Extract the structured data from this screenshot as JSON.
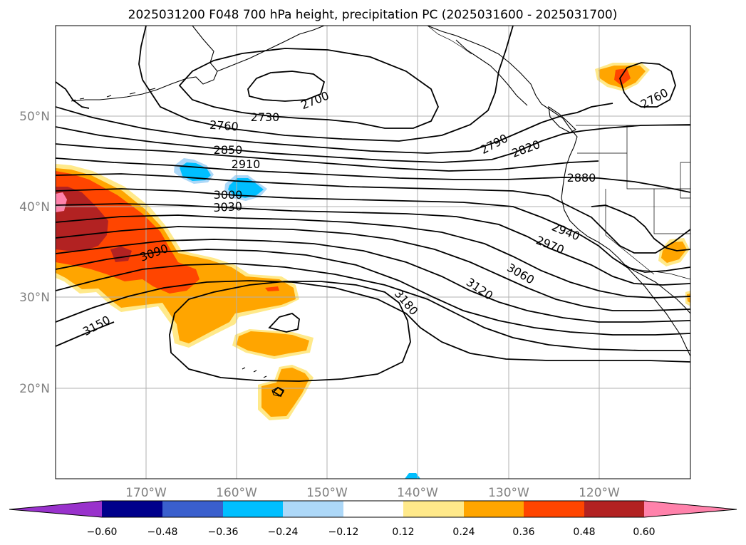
{
  "title": "2025031200 F048 700 hPa height, precipitation PC (2025031600 - 2025031700)",
  "latitude_labels": [
    "50°N",
    "40°N",
    "30°N",
    "20°N"
  ],
  "longitude_labels": [
    "170°W",
    "160°W",
    "150°W",
    "140°W",
    "130°W",
    "120°W"
  ],
  "contour_labels": [
    "2700",
    "2730",
    "2760",
    "2760",
    "2790",
    "2820",
    "2850",
    "2880",
    "2910",
    "2940",
    "2970",
    "3000",
    "3030",
    "3060",
    "3090",
    "3120",
    "3150",
    "3180"
  ],
  "colorbar": {
    "tick_labels": [
      "−0.60",
      "−0.48",
      "−0.36",
      "−0.24",
      "−0.12",
      "0.12",
      "0.24",
      "0.36",
      "0.48",
      "0.60"
    ],
    "colors": [
      "#9932cc",
      "#00008b",
      "#3a5fcd",
      "#00bfff",
      "#add8f8",
      "#ffffff",
      "#ffe98a",
      "#ffa500",
      "#ff4500",
      "#b22222",
      "#ff82ab"
    ]
  },
  "map": {
    "lon_range": [
      -180,
      -110
    ],
    "lat_range": [
      10,
      60
    ],
    "grid": true,
    "precip_colors": {
      "light_yellow": "#ffe98a",
      "orange": "#ffa500",
      "red_orange": "#ff4500",
      "dark_red": "#b22222",
      "pink": "#ff82ab",
      "light_blue": "#add8f8",
      "blue": "#00bfff"
    }
  }
}
